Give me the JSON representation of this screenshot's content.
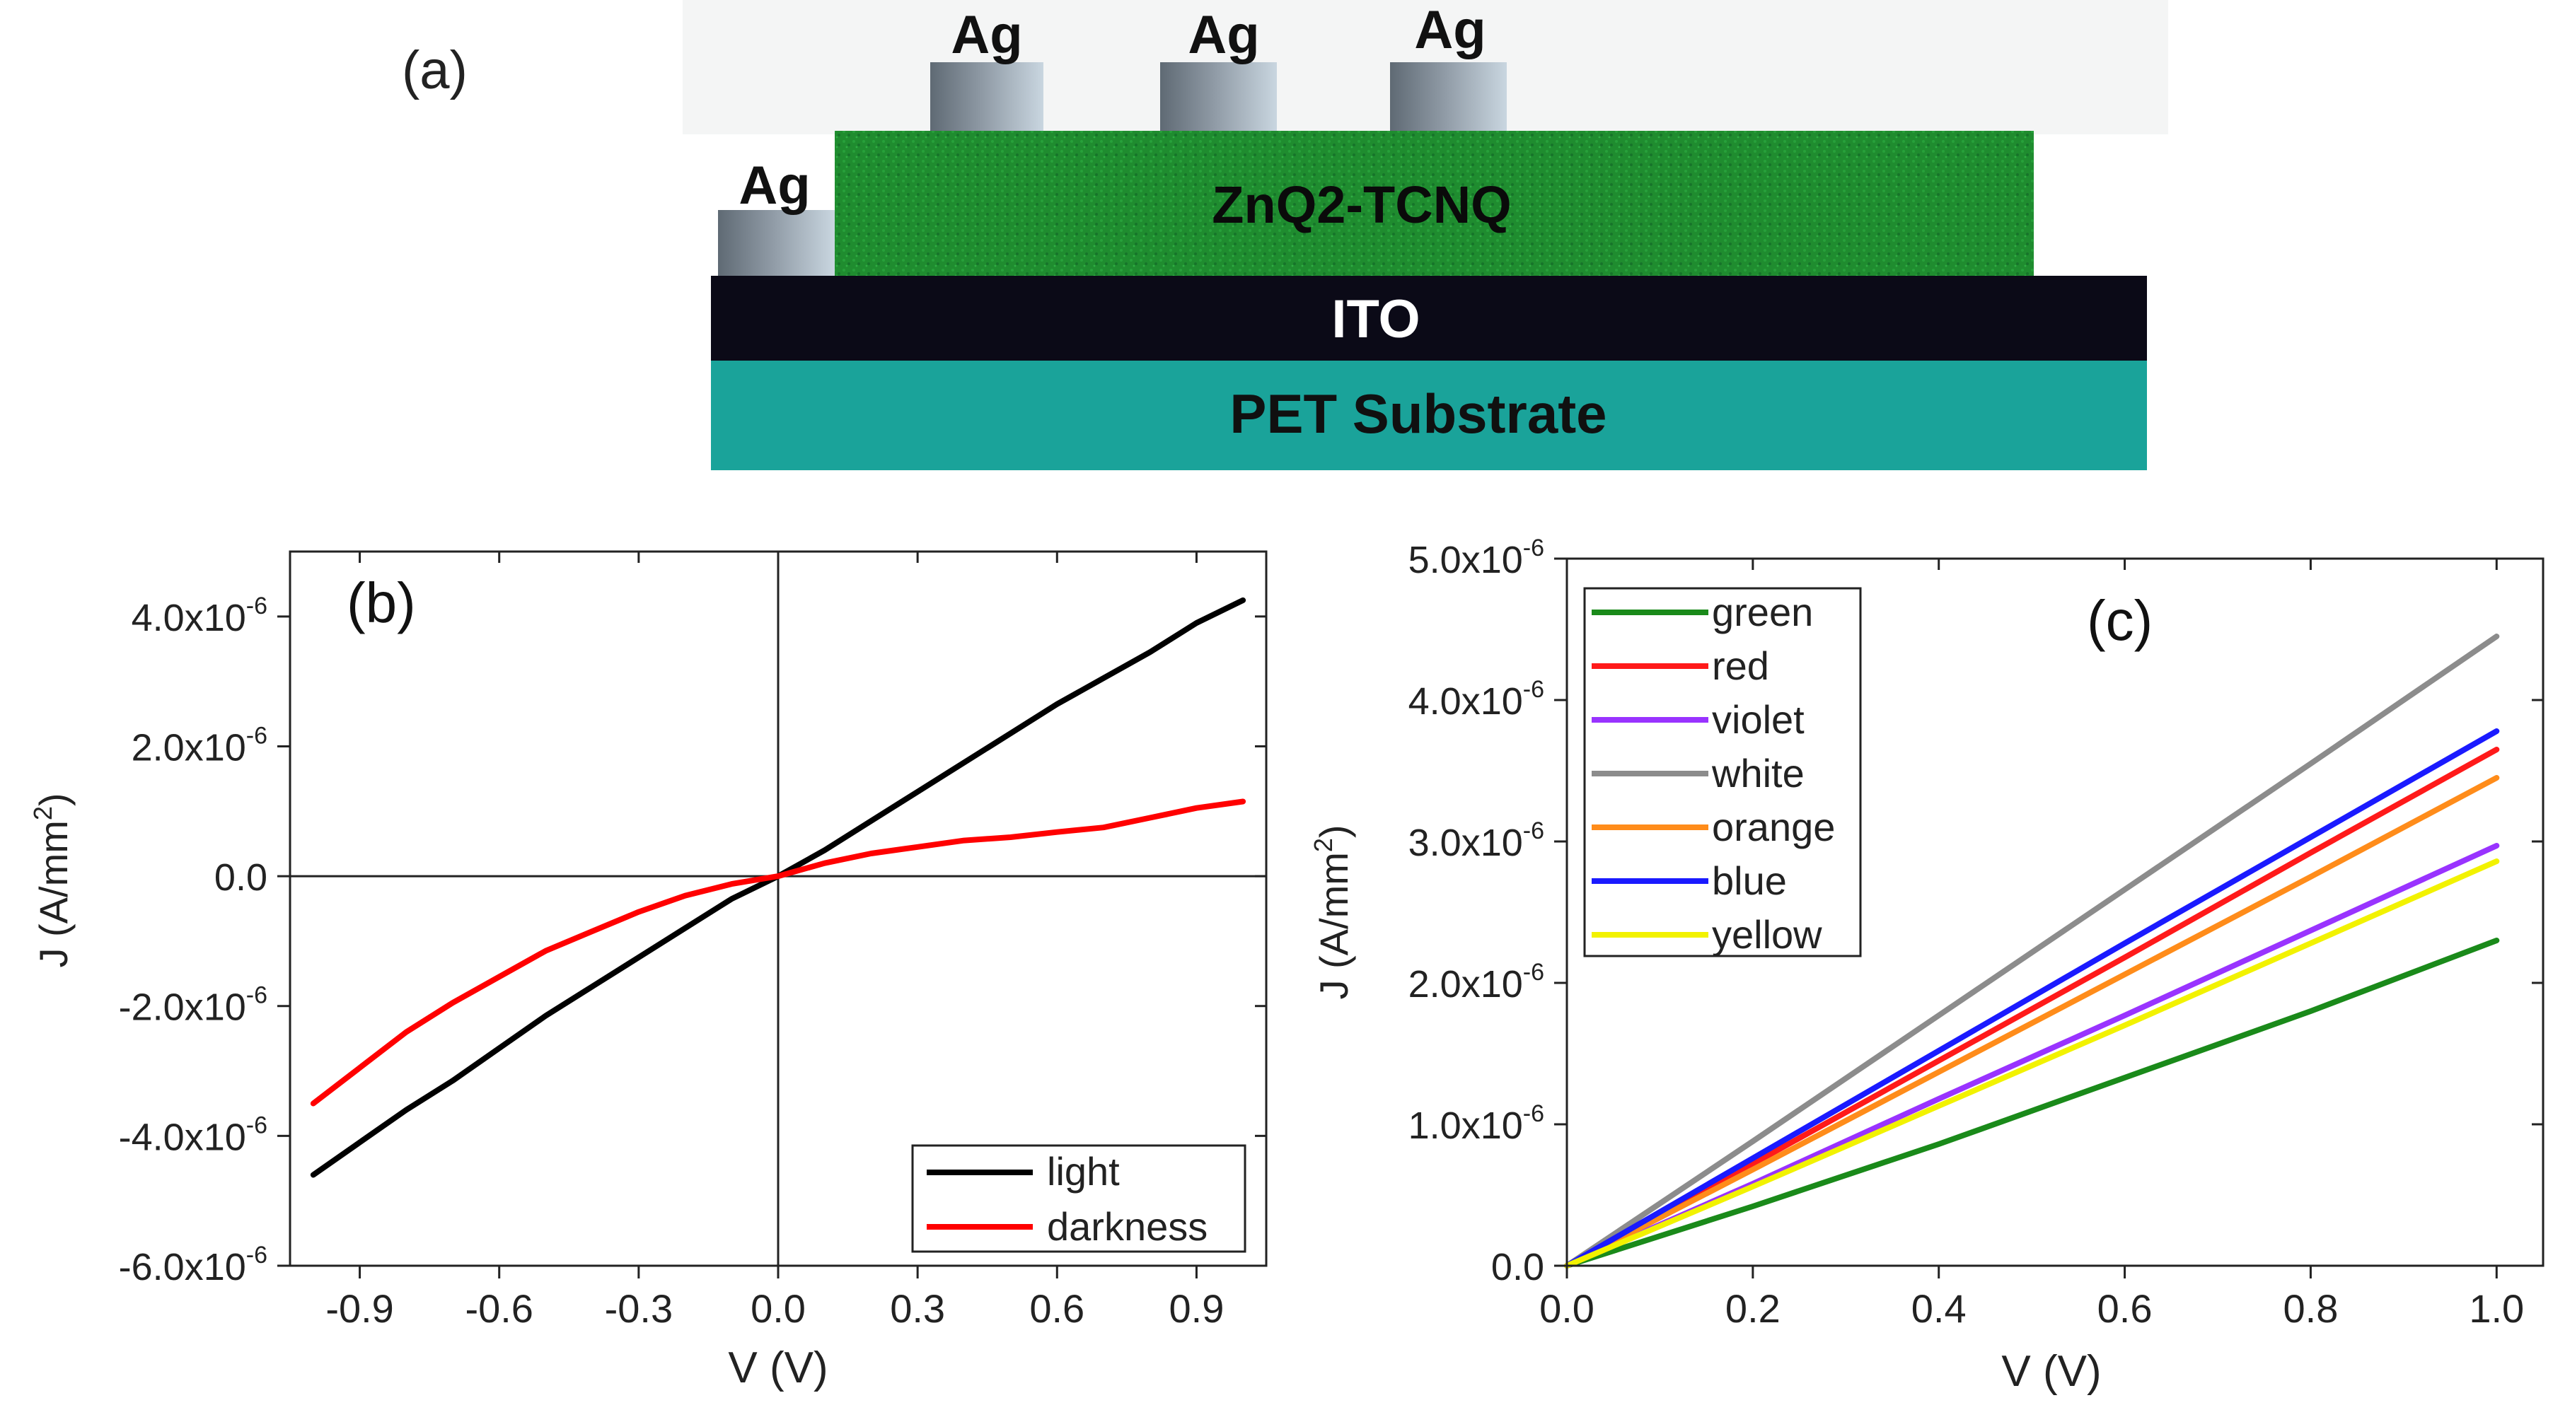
{
  "panel_a": {
    "label": "(a)",
    "layers": {
      "substrate": "PET Substrate",
      "ito": "ITO",
      "active": "ZnQ2-TCNQ",
      "electrodes": [
        "Ag",
        "Ag",
        "Ag"
      ],
      "bottom_contact": "Ag"
    },
    "colors": {
      "substrate": "#1aa39a",
      "ito": "#0b0a17",
      "active": "#1e8a2c",
      "electrode": "#8a95a0"
    }
  },
  "chart_data": [
    {
      "type": "line",
      "panel_label": "(b)",
      "xlabel": "V (V)",
      "ylabel": "J (A/mm2)",
      "ylabel_base": "J (A/mm",
      "ylabel_sup": "2",
      "ylabel_end": ")",
      "xlim": [
        -1.05,
        1.05
      ],
      "ylim": [
        -6e-06,
        5e-06
      ],
      "xticks": [
        -0.9,
        -0.6,
        -0.3,
        0.0,
        0.3,
        0.6,
        0.9
      ],
      "xtick_labels": [
        "-0.9",
        "-0.6",
        "-0.3",
        "0.0",
        "0.3",
        "0.6",
        "0.9"
      ],
      "yticks": [
        -6e-06,
        -4e-06,
        -2e-06,
        0.0,
        2e-06,
        4e-06
      ],
      "ytick_labels": [
        {
          "base": "-6.0x10",
          "exp": "-6"
        },
        {
          "base": "-4.0x10",
          "exp": "-6"
        },
        {
          "base": "-2.0x10",
          "exp": "-6"
        },
        {
          "base": "0.0",
          "exp": ""
        },
        {
          "base": "2.0x10",
          "exp": "-6"
        },
        {
          "base": "4.0x10",
          "exp": "-6"
        }
      ],
      "zero_lines": true,
      "legend_position": "bottom-right",
      "series": [
        {
          "name": "light",
          "color": "#000000",
          "x": [
            -1.0,
            -0.9,
            -0.8,
            -0.7,
            -0.6,
            -0.5,
            -0.4,
            -0.3,
            -0.2,
            -0.1,
            0.0,
            0.1,
            0.2,
            0.3,
            0.4,
            0.5,
            0.6,
            0.7,
            0.8,
            0.9,
            1.0
          ],
          "y": [
            -4.6e-06,
            -4.1e-06,
            -3.6e-06,
            -3.15e-06,
            -2.65e-06,
            -2.15e-06,
            -1.7e-06,
            -1.25e-06,
            -8e-07,
            -3.5e-07,
            0.0,
            4e-07,
            8.5e-07,
            1.3e-06,
            1.75e-06,
            2.2e-06,
            2.65e-06,
            3.05e-06,
            3.45e-06,
            3.9e-06,
            4.25e-06
          ]
        },
        {
          "name": "darkness",
          "color": "#ff0000",
          "x": [
            -1.0,
            -0.9,
            -0.8,
            -0.7,
            -0.6,
            -0.5,
            -0.4,
            -0.3,
            -0.2,
            -0.1,
            0.0,
            0.1,
            0.2,
            0.3,
            0.4,
            0.5,
            0.6,
            0.7,
            0.8,
            0.9,
            1.0
          ],
          "y": [
            -3.5e-06,
            -2.95e-06,
            -2.4e-06,
            -1.95e-06,
            -1.55e-06,
            -1.15e-06,
            -8.5e-07,
            -5.5e-07,
            -3e-07,
            -1.2e-07,
            0.0,
            2e-07,
            3.5e-07,
            4.5e-07,
            5.5e-07,
            6e-07,
            6.8e-07,
            7.5e-07,
            9e-07,
            1.05e-06,
            1.15e-06
          ]
        }
      ]
    },
    {
      "type": "line",
      "panel_label": "(c)",
      "xlabel": "V (V)",
      "ylabel": "J (A/mm2)",
      "ylabel_base": "J (A/mm",
      "ylabel_sup": "2",
      "ylabel_end": ")",
      "xlim": [
        0.0,
        1.05
      ],
      "ylim": [
        0.0,
        5e-06
      ],
      "xticks": [
        0.0,
        0.2,
        0.4,
        0.6,
        0.8,
        1.0
      ],
      "xtick_labels": [
        "0.0",
        "0.2",
        "0.4",
        "0.6",
        "0.8",
        "1.0"
      ],
      "yticks": [
        0.0,
        1e-06,
        2e-06,
        3e-06,
        4e-06,
        5e-06
      ],
      "ytick_labels": [
        {
          "base": "0.0",
          "exp": ""
        },
        {
          "base": "1.0x10",
          "exp": "-6"
        },
        {
          "base": "2.0x10",
          "exp": "-6"
        },
        {
          "base": "3.0x10",
          "exp": "-6"
        },
        {
          "base": "4.0x10",
          "exp": "-6"
        },
        {
          "base": "5.0x10",
          "exp": "-6"
        }
      ],
      "legend_position": "top-left",
      "series": [
        {
          "name": "green",
          "color": "#1a8a1a",
          "x": [
            0.0,
            0.2,
            0.4,
            0.6,
            0.8,
            1.0
          ],
          "y": [
            0.0,
            4.2e-07,
            8.6e-07,
            1.33e-06,
            1.8e-06,
            2.3e-06
          ]
        },
        {
          "name": "red",
          "color": "#ff1a1a",
          "x": [
            0.0,
            0.2,
            0.4,
            0.6,
            0.8,
            1.0
          ],
          "y": [
            0.0,
            7.2e-07,
            1.45e-06,
            2.18e-06,
            2.92e-06,
            3.65e-06
          ]
        },
        {
          "name": "violet",
          "color": "#9933ff",
          "x": [
            0.0,
            0.2,
            0.4,
            0.6,
            0.8,
            1.0
          ],
          "y": [
            0.0,
            5.8e-07,
            1.18e-06,
            1.77e-06,
            2.37e-06,
            2.97e-06
          ]
        },
        {
          "name": "white",
          "color": "#8c8c8c",
          "x": [
            0.0,
            0.2,
            0.4,
            0.6,
            0.8,
            1.0
          ],
          "y": [
            0.0,
            8.8e-07,
            1.77e-06,
            2.66e-06,
            3.55e-06,
            4.45e-06
          ]
        },
        {
          "name": "orange",
          "color": "#ff8c1a",
          "x": [
            0.0,
            0.2,
            0.4,
            0.6,
            0.8,
            1.0
          ],
          "y": [
            0.0,
            6.8e-07,
            1.37e-06,
            2.06e-06,
            2.75e-06,
            3.45e-06
          ]
        },
        {
          "name": "blue",
          "color": "#1a1aff",
          "x": [
            0.0,
            0.2,
            0.4,
            0.6,
            0.8,
            1.0
          ],
          "y": [
            0.0,
            7.6e-07,
            1.52e-06,
            2.28e-06,
            3.03e-06,
            3.78e-06
          ]
        },
        {
          "name": "yellow",
          "color": "#f2f200",
          "x": [
            0.0,
            0.2,
            0.4,
            0.6,
            0.8,
            1.0
          ],
          "y": [
            0.0,
            5.6e-07,
            1.13e-06,
            1.7e-06,
            2.28e-06,
            2.86e-06
          ]
        }
      ]
    }
  ]
}
